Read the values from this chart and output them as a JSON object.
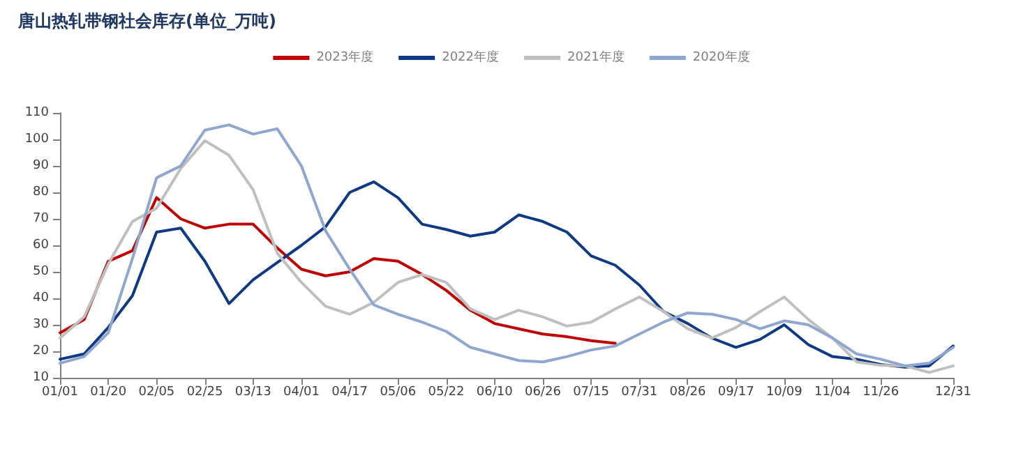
{
  "chart_data": {
    "type": "line",
    "title": "唐山热轧带钢社会库存(单位_万吨)",
    "categories": [
      "01/01",
      null,
      "01/20",
      null,
      "02/05",
      null,
      "02/25",
      null,
      "03/13",
      null,
      "04/01",
      null,
      "04/17",
      null,
      "05/06",
      null,
      "05/22",
      null,
      "06/10",
      null,
      "06/26",
      null,
      "07/15",
      null,
      "07/31",
      null,
      "08/26",
      null,
      "09/17",
      null,
      "10/09",
      null,
      "11/04",
      null,
      "11/26",
      null,
      null,
      "12/31"
    ],
    "series": [
      {
        "name": "2023年度",
        "color": "#c00000",
        "values": [
          27,
          32,
          54,
          58,
          78,
          70,
          66.5,
          68,
          68,
          59,
          51,
          48.5,
          50,
          55,
          54,
          49,
          43,
          35.5,
          30.5,
          28.5,
          26.5,
          25.5,
          24,
          23,
          null,
          null,
          null,
          null,
          null,
          null,
          null,
          null,
          null,
          null,
          null,
          null,
          null,
          null
        ]
      },
      {
        "name": "2022年度",
        "color": "#0e3a85",
        "values": [
          17,
          19,
          29,
          41,
          65,
          66.5,
          54,
          38,
          47,
          53.5,
          60,
          67,
          80,
          84,
          78,
          68,
          66,
          63.5,
          65,
          71.5,
          69,
          65,
          56,
          52.5,
          45,
          35,
          30.5,
          25,
          21.5,
          24.5,
          30,
          22.5,
          18,
          17,
          15,
          14,
          14.5,
          22
        ]
      },
      {
        "name": "2021年度",
        "color": "#bfbfbf",
        "values": [
          25,
          33,
          53,
          69,
          74,
          89,
          99.5,
          94,
          81,
          57,
          46,
          37,
          34,
          38.5,
          46,
          49,
          46,
          36,
          32,
          35.5,
          33,
          29.5,
          31,
          36,
          40.5,
          35,
          28.5,
          25,
          29,
          35,
          40.5,
          32,
          25,
          16,
          14.7,
          14.5,
          12,
          14.5
        ]
      },
      {
        "name": "2020年度",
        "color": "#8fa6cf",
        "values": [
          15.5,
          18,
          27,
          55,
          85.5,
          90,
          103.5,
          105.5,
          102,
          104,
          90,
          65.5,
          51,
          37.5,
          34,
          31,
          27.5,
          21.5,
          19,
          16.5,
          16,
          18,
          20.5,
          22,
          26.5,
          31,
          34.5,
          34,
          32,
          28.5,
          31.5,
          30,
          25,
          19,
          17,
          14.5,
          15.5,
          21.5
        ]
      }
    ],
    "ylim": [
      10,
      110
    ],
    "yticks": [
      10,
      20,
      30,
      40,
      50,
      60,
      70,
      80,
      90,
      100,
      110
    ],
    "grid": false,
    "legend": "top",
    "marker": "none",
    "line_style": "solid"
  }
}
